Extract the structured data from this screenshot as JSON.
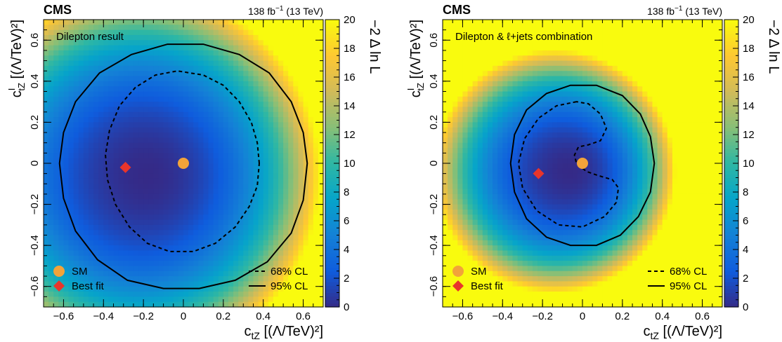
{
  "colors": {
    "colormap": [
      "#352a87",
      "#0f5cdd",
      "#1481d6",
      "#06a4ca",
      "#2eb7a4",
      "#87bf77",
      "#d1bb59",
      "#fec832",
      "#f9fb0e"
    ],
    "contour": "#000000",
    "sm_marker": "#f2a33a",
    "best_fit_marker": "#e8352b"
  },
  "chart_data": [
    {
      "type": "heatmap",
      "experiment": "CMS",
      "lumi": "138 fb",
      "lumi_exp": "−1",
      "energy": " (13 TeV)",
      "title": "Dilepton result",
      "xlabel_main": "c",
      "xlabel_sub": "tZ",
      "xlabel_rest": " [(Λ/TeV)²]",
      "ylabel_main": "c",
      "ylabel_sup": "I",
      "ylabel_sub": "tZ",
      "ylabel_rest": " [(Λ/TeV)²]",
      "xlim": [
        -0.7,
        0.7
      ],
      "ylim": [
        -0.7,
        0.7
      ],
      "xticks": [
        -0.6,
        -0.4,
        -0.2,
        0,
        0.2,
        0.4,
        0.6
      ],
      "xtick_labels": [
        "−0.6",
        "−0.4",
        "−0.2",
        "0",
        "0.2",
        "0.4",
        "0.6"
      ],
      "yticks": [
        -0.6,
        -0.4,
        -0.2,
        0,
        0.2,
        0.4,
        0.6
      ],
      "ytick_labels": [
        "−0.6",
        "−0.4",
        "−0.2",
        "0",
        "0.2",
        "0.4",
        "0.6"
      ],
      "zlabel": "−2 Δ ln L",
      "zlim": [
        0,
        20
      ],
      "zticks": [
        0,
        2,
        4,
        6,
        8,
        10,
        12,
        14,
        16,
        18,
        20
      ],
      "zmodel": {
        "cx": -0.18,
        "cy": -0.06,
        "rx": 0.62,
        "ry": 0.62,
        "k": 6.0,
        "angular": 0.15
      },
      "sm": {
        "x": 0,
        "y": 0
      },
      "best_fit": {
        "x": -0.29,
        "y": -0.02
      },
      "contour_68": [
        [
          0.38,
          0.0
        ],
        [
          0.37,
          0.1
        ],
        [
          0.34,
          0.2
        ],
        [
          0.28,
          0.3
        ],
        [
          0.2,
          0.38
        ],
        [
          0.1,
          0.43
        ],
        [
          -0.03,
          0.45
        ],
        [
          -0.14,
          0.43
        ],
        [
          -0.24,
          0.37
        ],
        [
          -0.32,
          0.28
        ],
        [
          -0.37,
          0.16
        ],
        [
          -0.39,
          0.04
        ],
        [
          -0.38,
          -0.08
        ],
        [
          -0.34,
          -0.2
        ],
        [
          -0.27,
          -0.31
        ],
        [
          -0.18,
          -0.39
        ],
        [
          -0.07,
          -0.43
        ],
        [
          0.05,
          -0.43
        ],
        [
          0.16,
          -0.39
        ],
        [
          0.26,
          -0.31
        ],
        [
          0.33,
          -0.21
        ],
        [
          0.37,
          -0.11
        ],
        [
          0.38,
          0.0
        ]
      ],
      "contour_95": [
        [
          0.62,
          0.0
        ],
        [
          0.6,
          0.15
        ],
        [
          0.54,
          0.3
        ],
        [
          0.43,
          0.44
        ],
        [
          0.28,
          0.53
        ],
        [
          0.1,
          0.58
        ],
        [
          -0.08,
          0.58
        ],
        [
          -0.26,
          0.53
        ],
        [
          -0.42,
          0.44
        ],
        [
          -0.54,
          0.3
        ],
        [
          -0.6,
          0.15
        ],
        [
          -0.62,
          0.0
        ],
        [
          -0.6,
          -0.17
        ],
        [
          -0.54,
          -0.33
        ],
        [
          -0.43,
          -0.47
        ],
        [
          -0.28,
          -0.57
        ],
        [
          -0.1,
          -0.61
        ],
        [
          0.08,
          -0.61
        ],
        [
          0.26,
          -0.57
        ],
        [
          0.42,
          -0.48
        ],
        [
          0.54,
          -0.34
        ],
        [
          0.6,
          -0.18
        ],
        [
          0.62,
          0.0
        ]
      ],
      "legend": {
        "sm_label": "SM",
        "best_fit_label": "Best fit",
        "cl68_label": "68% CL",
        "cl95_label": "95% CL"
      }
    },
    {
      "type": "heatmap",
      "experiment": "CMS",
      "lumi": "138 fb",
      "lumi_exp": "−1",
      "energy": " (13 TeV)",
      "title": "Dilepton & ℓ+jets combination",
      "xlabel_main": "c",
      "xlabel_sub": "tZ",
      "xlabel_rest": " [(Λ/TeV)²]",
      "ylabel_main": "c",
      "ylabel_sup": "I",
      "ylabel_sub": "tZ",
      "ylabel_rest": " [(Λ/TeV)²]",
      "xlim": [
        -0.7,
        0.7
      ],
      "ylim": [
        -0.7,
        0.7
      ],
      "xticks": [
        -0.6,
        -0.4,
        -0.2,
        0,
        0.2,
        0.4,
        0.6
      ],
      "xtick_labels": [
        "−0.6",
        "−0.4",
        "−0.2",
        "0",
        "0.2",
        "0.4",
        "0.6"
      ],
      "yticks": [
        -0.6,
        -0.4,
        -0.2,
        0,
        0.2,
        0.4,
        0.6
      ],
      "ytick_labels": [
        "−0.6",
        "−0.4",
        "−0.2",
        "0",
        "0.2",
        "0.4",
        "0.6"
      ],
      "zlabel": "−2 Δ ln L",
      "zlim": [
        0,
        20
      ],
      "zticks": [
        0,
        2,
        4,
        6,
        8,
        10,
        12,
        14,
        16,
        18,
        20
      ],
      "zmodel": {
        "cx": -0.06,
        "cy": -0.04,
        "rx": 0.4,
        "ry": 0.4,
        "k": 6.0,
        "angular": 0.35
      },
      "sm": {
        "x": 0,
        "y": 0
      },
      "best_fit": {
        "x": -0.22,
        "y": -0.05
      },
      "contour_68": [
        [
          -0.03,
          0.3
        ],
        [
          -0.13,
          0.28
        ],
        [
          -0.22,
          0.22
        ],
        [
          -0.29,
          0.12
        ],
        [
          -0.32,
          0.0
        ],
        [
          -0.3,
          -0.12
        ],
        [
          -0.23,
          -0.23
        ],
        [
          -0.12,
          -0.3
        ],
        [
          0.0,
          -0.31
        ],
        [
          0.11,
          -0.26
        ],
        [
          0.17,
          -0.19
        ],
        [
          0.18,
          -0.12
        ],
        [
          0.15,
          -0.08
        ],
        [
          0.08,
          -0.06
        ],
        [
          0.02,
          -0.04
        ],
        [
          -0.03,
          0.0
        ],
        [
          -0.04,
          0.04
        ],
        [
          -0.02,
          0.08
        ],
        [
          0.03,
          0.09
        ],
        [
          0.09,
          0.11
        ],
        [
          0.12,
          0.17
        ],
        [
          0.09,
          0.24
        ],
        [
          0.03,
          0.29
        ],
        [
          -0.03,
          0.3
        ]
      ],
      "contour_95": [
        [
          0.36,
          0.0
        ],
        [
          0.34,
          0.13
        ],
        [
          0.29,
          0.24
        ],
        [
          0.2,
          0.33
        ],
        [
          0.07,
          0.38
        ],
        [
          -0.06,
          0.38
        ],
        [
          -0.18,
          0.34
        ],
        [
          -0.28,
          0.26
        ],
        [
          -0.34,
          0.14
        ],
        [
          -0.36,
          0.0
        ],
        [
          -0.34,
          -0.14
        ],
        [
          -0.28,
          -0.27
        ],
        [
          -0.18,
          -0.36
        ],
        [
          -0.06,
          -0.4
        ],
        [
          0.07,
          -0.4
        ],
        [
          0.19,
          -0.35
        ],
        [
          0.28,
          -0.26
        ],
        [
          0.34,
          -0.14
        ],
        [
          0.36,
          0.0
        ]
      ],
      "legend": {
        "sm_label": "SM",
        "best_fit_label": "Best fit",
        "cl68_label": "68% CL",
        "cl95_label": "95% CL"
      }
    }
  ]
}
